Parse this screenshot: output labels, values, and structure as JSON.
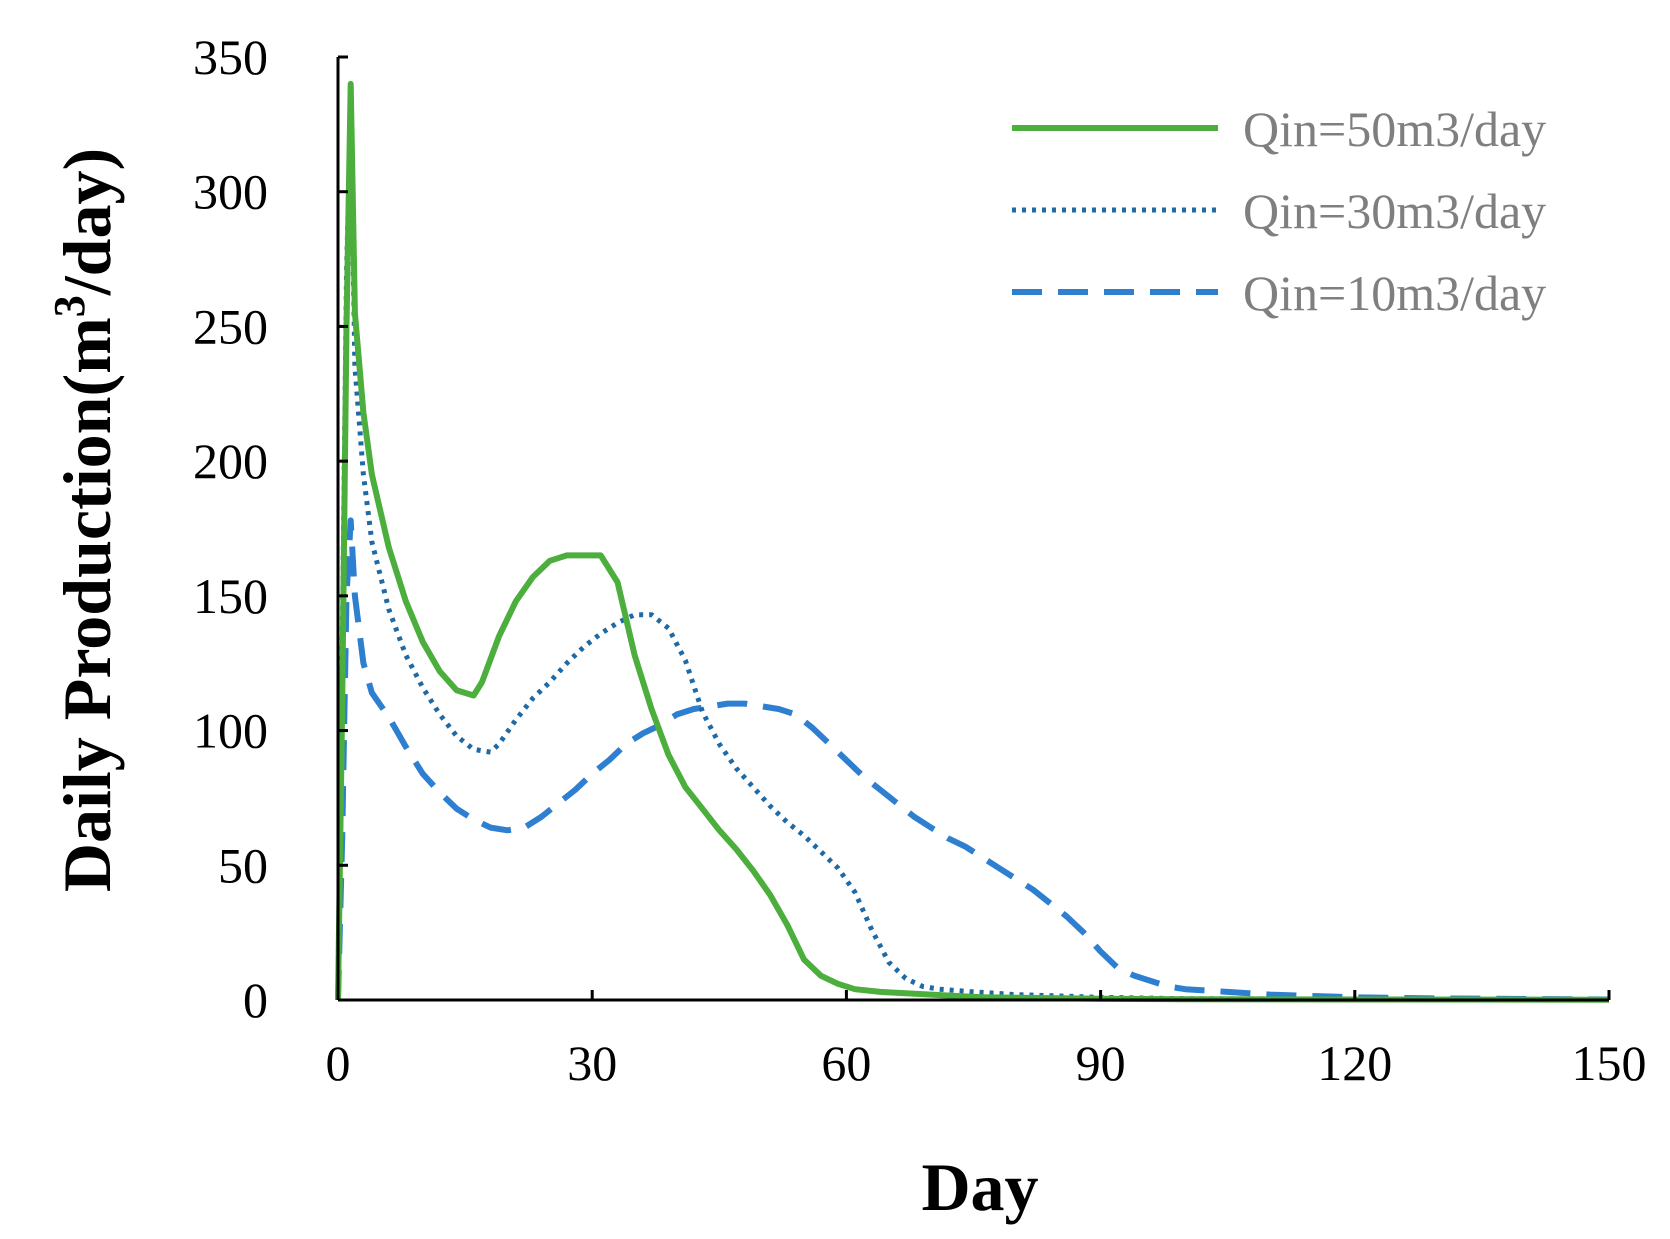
{
  "chart_data": {
    "type": "line",
    "title": "",
    "xlabel": "Day",
    "ylabel_main": "Daily Production(m",
    "ylabel_sup": "3",
    "ylabel_end": "/day)",
    "xlim": [
      0,
      150
    ],
    "ylim": [
      0,
      350
    ],
    "xticks": [
      0,
      30,
      60,
      90,
      120,
      150
    ],
    "yticks": [
      0,
      50,
      100,
      150,
      200,
      250,
      300,
      350
    ],
    "grid": false,
    "legend_position": "top-right",
    "series": [
      {
        "name": "Qin=50m3/day",
        "color": "#4cae3c",
        "style": "solid",
        "x": [
          0,
          0.5,
          1,
          1.5,
          2,
          3,
          4,
          6,
          8,
          10,
          12,
          14,
          16,
          17,
          19,
          21,
          23,
          25,
          27,
          29,
          31,
          33,
          35,
          37,
          39,
          41,
          43,
          45,
          47,
          49,
          51,
          53,
          55,
          57,
          59,
          61,
          64,
          67,
          70,
          73,
          76,
          80,
          90,
          100,
          120,
          150
        ],
        "y": [
          0,
          110,
          250,
          340,
          255,
          218,
          195,
          168,
          148,
          133,
          122,
          115,
          113,
          118,
          135,
          148,
          157,
          163,
          165,
          165,
          165,
          155,
          128,
          108,
          91,
          79,
          71,
          63,
          56,
          48,
          39,
          28,
          15,
          9,
          6,
          4,
          3,
          2.5,
          2,
          1.5,
          1,
          0.8,
          0.5,
          0.3,
          0.2,
          0.1
        ]
      },
      {
        "name": "Qin=30m3/day",
        "color": "#1f6aa5",
        "style": "dotted",
        "x": [
          0,
          0.5,
          1,
          1.5,
          2,
          3,
          4,
          6,
          8,
          10,
          12,
          14,
          16,
          18,
          19,
          21,
          23,
          25,
          27,
          29,
          31,
          33,
          35,
          37,
          39,
          41,
          43,
          45,
          47,
          49,
          51,
          53,
          55,
          57,
          59,
          61,
          63,
          65,
          67,
          69,
          71,
          75,
          80,
          90,
          100,
          120,
          150
        ],
        "y": [
          0,
          130,
          270,
          330,
          235,
          195,
          170,
          145,
          128,
          116,
          106,
          98,
          93,
          92,
          95,
          104,
          112,
          118,
          125,
          131,
          136,
          140,
          143,
          143,
          138,
          126,
          107,
          95,
          86,
          79,
          72,
          66,
          61,
          55,
          49,
          40,
          26,
          14,
          8,
          5,
          4,
          3,
          2,
          1,
          0.5,
          0.3,
          0.1
        ]
      },
      {
        "name": "Qin=10m3/day",
        "color": "#2e7fd0",
        "style": "dashed",
        "x": [
          0,
          0.5,
          1,
          1.5,
          2,
          3,
          4,
          6,
          8,
          10,
          12,
          14,
          16,
          18,
          20,
          22,
          24,
          26,
          28,
          30,
          32,
          34,
          36,
          38,
          40,
          42,
          44,
          46,
          48,
          50,
          52,
          54,
          56,
          58,
          60,
          62,
          64,
          66,
          68,
          70,
          72,
          74,
          76,
          78,
          80,
          82,
          84,
          86,
          88,
          90,
          92,
          94,
          96,
          98,
          100,
          105,
          110,
          120,
          130,
          150
        ],
        "y": [
          0,
          60,
          150,
          178,
          150,
          125,
          114,
          105,
          94,
          84,
          77,
          71,
          67,
          64,
          63,
          64,
          68,
          73,
          78,
          84,
          89,
          95,
          99,
          102,
          106,
          108,
          109,
          110,
          110,
          109,
          108,
          106,
          101,
          95,
          89,
          83,
          78,
          73,
          68,
          64,
          60,
          57,
          53,
          49,
          45,
          41,
          36,
          31,
          25,
          18,
          12,
          9,
          7,
          5,
          4,
          3,
          2,
          1,
          0.6,
          0.2
        ]
      }
    ]
  }
}
